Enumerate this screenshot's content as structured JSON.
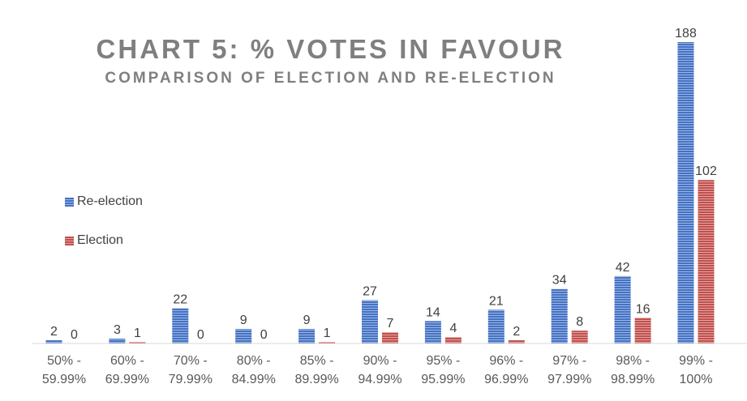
{
  "chart_data": {
    "type": "bar",
    "title": "CHART 5: % VOTES IN FAVOUR",
    "subtitle": "COMPARISON OF ELECTION AND RE-ELECTION",
    "categories": [
      [
        "50% -",
        "59.99%"
      ],
      [
        "60% -",
        "69.99%"
      ],
      [
        "70% -",
        "79.99%"
      ],
      [
        "80% -",
        "84.99%"
      ],
      [
        "85% -",
        "89.99%"
      ],
      [
        "90% -",
        "94.99%"
      ],
      [
        "95% -",
        "95.99%"
      ],
      [
        "96% -",
        "96.99%"
      ],
      [
        "97% -",
        "97.99%"
      ],
      [
        "98% -",
        "98.99%"
      ],
      [
        "99% -",
        "100%"
      ]
    ],
    "series": [
      {
        "name": "Re-election",
        "color": "#4472c4",
        "values": [
          2,
          3,
          22,
          9,
          9,
          27,
          14,
          21,
          34,
          42,
          188
        ]
      },
      {
        "name": "Election",
        "color": "#c0504d",
        "values": [
          0,
          1,
          0,
          0,
          1,
          7,
          4,
          2,
          8,
          16,
          102
        ]
      }
    ],
    "ylim": [
      0,
      200
    ],
    "legend_position": "left",
    "grid": false
  }
}
